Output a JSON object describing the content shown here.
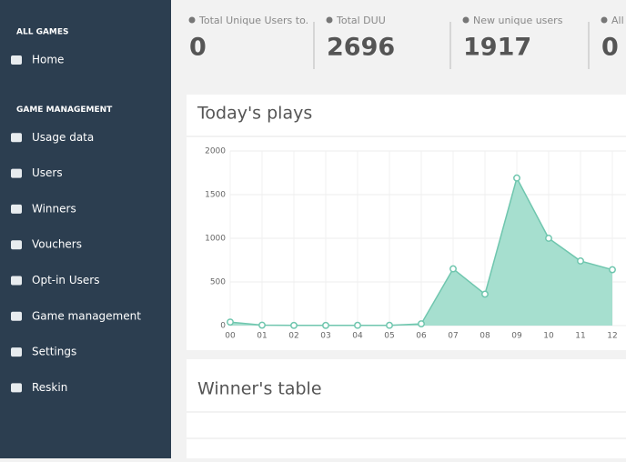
{
  "sidebar": {
    "sections": [
      {
        "title": "ALL GAMES",
        "items": [
          "Home"
        ]
      },
      {
        "title": "GAME MANAGEMENT",
        "items": [
          "Usage data",
          "Users",
          "Winners",
          "Vouchers",
          "Opt-in Users",
          "Game management",
          "Settings",
          "Reskin"
        ]
      }
    ]
  },
  "stats": [
    {
      "label": "Total Unique Users to.",
      "value": 0
    },
    {
      "label": "Total DUU",
      "value": 2696
    },
    {
      "label": "New unique users",
      "value": 1917
    },
    {
      "label": "All",
      "value": 0
    }
  ],
  "winners_panel": {
    "title": "Winner's table"
  },
  "chart_data": {
    "type": "area",
    "title": "Today's plays",
    "categories": [
      "00",
      "01",
      "02",
      "03",
      "04",
      "05",
      "06",
      "07",
      "08",
      "09",
      "10",
      "11",
      "12"
    ],
    "values": [
      40,
      5,
      2,
      2,
      3,
      3,
      20,
      650,
      360,
      1690,
      1000,
      740,
      640
    ],
    "color": "#a6dfcf",
    "line_color": "#6fc6ae",
    "ylim": [
      0,
      2000
    ],
    "yticks": [
      0,
      500,
      1000,
      1500,
      2000
    ],
    "grid": true
  }
}
